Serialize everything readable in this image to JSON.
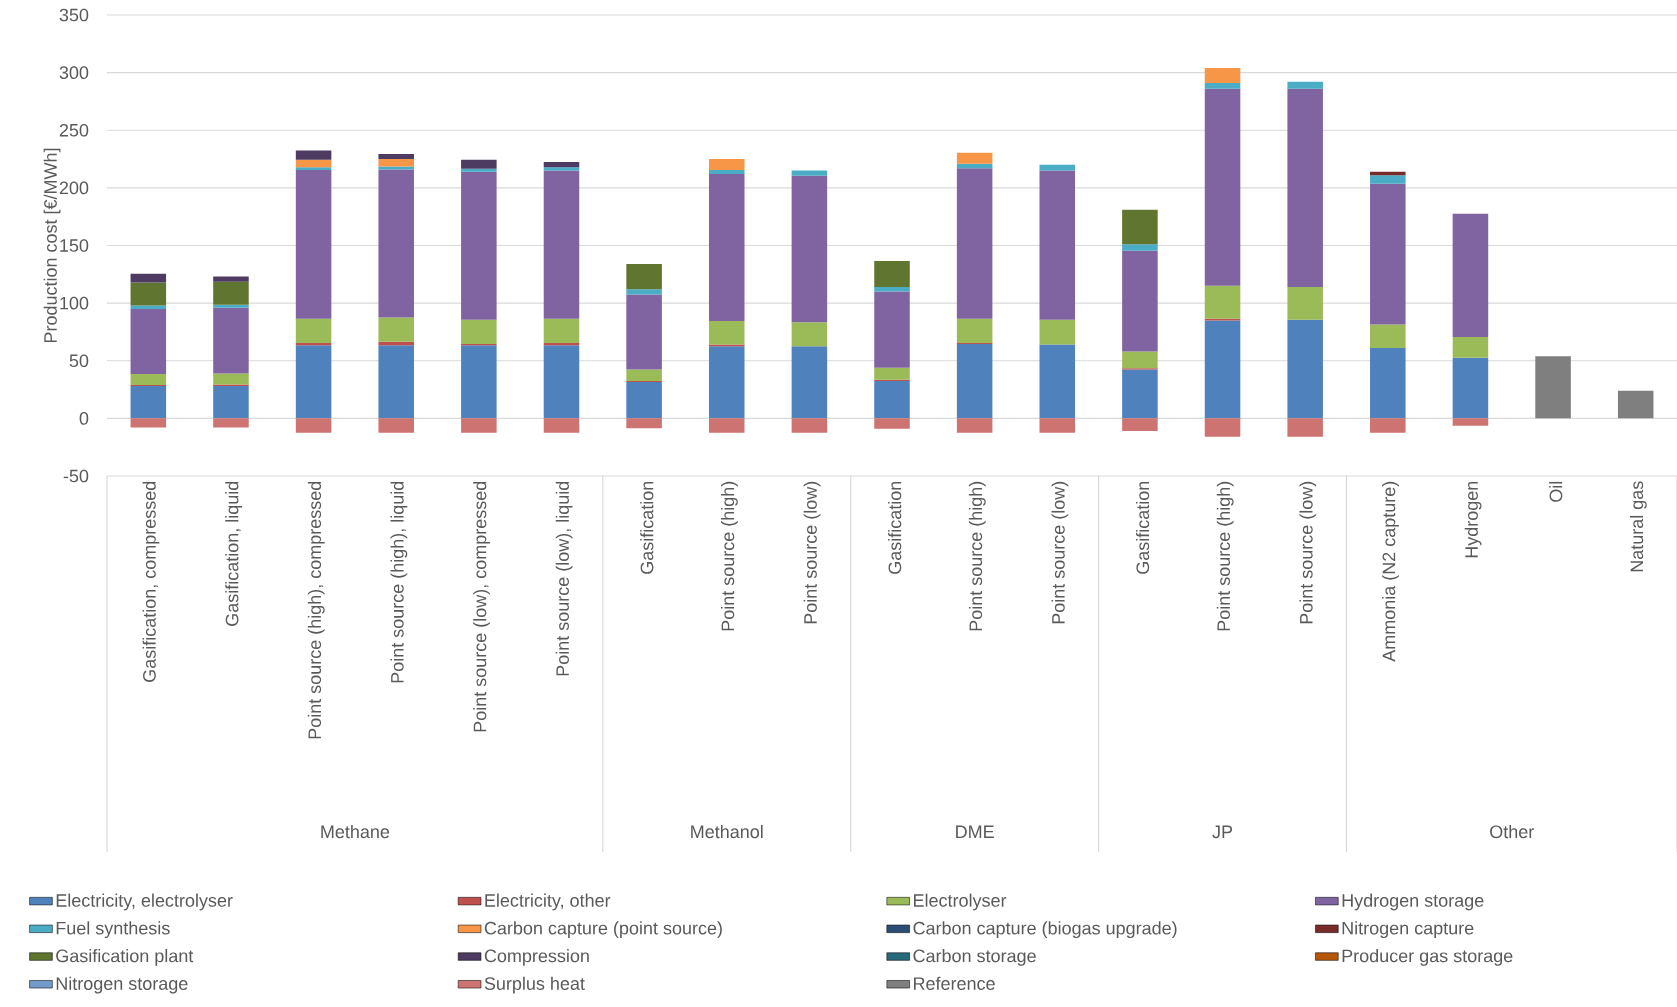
{
  "chart_data": {
    "type": "bar",
    "stacked": true,
    "ylabel": "Production cost [€/MWh]",
    "categories": [
      "Gasification, compressed",
      "Gasification, liquid",
      "Point source (high), compressed",
      "Point source (high), liquid",
      "Point source (low), compressed",
      "Point source (low), liquid",
      "Gasification",
      "Point source (high)",
      "Point source (low)",
      "Gasification",
      "Point source (high)",
      "Point source (low)",
      "Gasification",
      "Point source (high)",
      "Point source (low)",
      "Ammonia (N2 capture)",
      "Hydrogen",
      "Oil",
      "Natural gas"
    ],
    "annotations": [
      "Methane",
      "Methanol",
      "DME",
      "JP",
      "Other"
    ],
    "ylim": [
      -50,
      350
    ],
    "yticks": [
      -50,
      0,
      50,
      100,
      150,
      200,
      250,
      300,
      350
    ],
    "grid": "y",
    "legend": "bottom",
    "series": [
      {
        "name": "Electricity, electrolyser",
        "color": "#4f81bd",
        "values": [
          28,
          28,
          63.5,
          63.5,
          63.5,
          63.5,
          31.5,
          62.5,
          62.5,
          32.5,
          64.5,
          64,
          42.5,
          85,
          85.5,
          61,
          52.5,
          null,
          null
        ]
      },
      {
        "name": "Electricity, other",
        "color": "#c0504d",
        "values": [
          1,
          1.5,
          2,
          3,
          1,
          2,
          1,
          1.5,
          null,
          1,
          1,
          null,
          1,
          1.5,
          null,
          null,
          null,
          null,
          null
        ]
      },
      {
        "name": "Electrolyser",
        "color": "#9bbb59",
        "values": [
          9.5,
          9.5,
          21,
          21,
          21,
          21,
          10,
          20.5,
          21,
          10.5,
          21,
          21.5,
          14.5,
          28.5,
          28.5,
          20.5,
          18,
          null,
          null
        ]
      },
      {
        "name": "Hydrogen storage",
        "color": "#8064a2",
        "values": [
          56.5,
          57,
          129,
          128.5,
          128.5,
          128.5,
          65,
          127.5,
          127,
          66,
          130.5,
          129.5,
          87.5,
          171,
          172,
          122,
          107,
          null,
          null
        ]
      },
      {
        "name": "Fuel synthesis",
        "color": "#4bacc6",
        "values": [
          3,
          2.5,
          2.5,
          2.5,
          2.5,
          3,
          4.5,
          3.5,
          4.5,
          4,
          4,
          5,
          5.5,
          5,
          6,
          7.5,
          null,
          null,
          null
        ]
      },
      {
        "name": "Carbon capture (point source)",
        "color": "#f79646",
        "values": [
          null,
          null,
          6.5,
          6.5,
          null,
          null,
          null,
          9.5,
          null,
          null,
          9.5,
          null,
          null,
          13,
          null,
          null,
          null,
          null,
          null
        ]
      },
      {
        "name": "Carbon capture (biogas upgrade)",
        "color": "#2c4d75",
        "values": [
          null,
          null,
          null,
          null,
          null,
          null,
          null,
          null,
          null,
          null,
          null,
          null,
          null,
          null,
          null,
          null,
          null,
          null,
          null
        ]
      },
      {
        "name": "Nitrogen capture",
        "color": "#772c2a",
        "values": [
          null,
          null,
          null,
          null,
          null,
          null,
          null,
          null,
          null,
          null,
          null,
          null,
          null,
          null,
          null,
          3,
          null,
          null,
          null
        ]
      },
      {
        "name": "Gasification plant",
        "color": "#5f7530",
        "values": [
          20,
          20,
          null,
          null,
          null,
          null,
          22,
          null,
          null,
          22.5,
          null,
          null,
          30,
          null,
          null,
          null,
          null,
          null,
          null
        ]
      },
      {
        "name": "Compression",
        "color": "#4d3b62",
        "values": [
          7.5,
          4.5,
          8,
          4.5,
          8,
          4.5,
          null,
          null,
          null,
          null,
          null,
          null,
          null,
          null,
          null,
          null,
          null,
          null,
          null
        ]
      },
      {
        "name": "Carbon storage",
        "color": "#276a7c",
        "values": [
          null,
          null,
          null,
          null,
          null,
          null,
          null,
          null,
          null,
          null,
          null,
          null,
          null,
          null,
          null,
          null,
          null,
          null,
          null
        ]
      },
      {
        "name": "Producer gas storage",
        "color": "#b65708",
        "values": [
          null,
          null,
          null,
          null,
          null,
          null,
          null,
          null,
          null,
          null,
          null,
          null,
          null,
          null,
          null,
          null,
          null,
          null,
          null
        ]
      },
      {
        "name": "Nitrogen storage",
        "color": "#729aca",
        "values": [
          null,
          null,
          null,
          null,
          null,
          null,
          null,
          null,
          null,
          null,
          null,
          null,
          null,
          null,
          null,
          null,
          null,
          null,
          null
        ]
      },
      {
        "name": "Surplus heat",
        "color": "#cd7371",
        "values": [
          -8,
          -8,
          -12.5,
          -12.5,
          -12.5,
          -12.5,
          -8.5,
          -12.5,
          -12.5,
          -9,
          -12.5,
          -12.5,
          -11,
          -16,
          -16,
          -12.5,
          -6.5,
          null,
          null
        ]
      },
      {
        "name": "Reference",
        "color": "#7f7f7f",
        "values": [
          null,
          null,
          null,
          null,
          null,
          null,
          null,
          null,
          null,
          null,
          null,
          null,
          null,
          null,
          null,
          null,
          null,
          54,
          24
        ]
      }
    ]
  }
}
